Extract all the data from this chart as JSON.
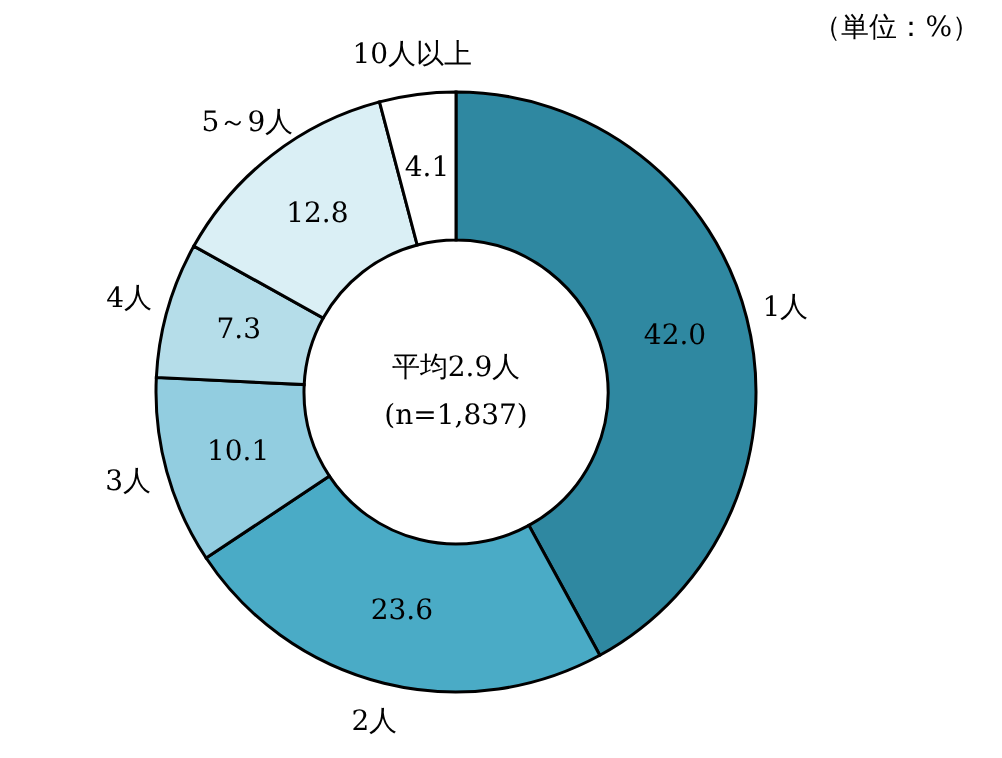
{
  "chart_data": {
    "type": "donut",
    "categories": [
      "1人",
      "2人",
      "3人",
      "4人",
      "5～9人",
      "10人以上"
    ],
    "values": [
      42.0,
      23.6,
      10.1,
      7.3,
      12.8,
      4.1
    ],
    "value_labels": [
      "42.0",
      "23.6",
      "10.1",
      "7.3",
      "12.8",
      "4.1"
    ],
    "colors": [
      "#2f88a1",
      "#4aabc6",
      "#92cde0",
      "#b5dde9",
      "#daeff5",
      "#ffffff"
    ],
    "annotations": [
      "（単位：%）",
      "平均2.9人",
      "(n=1,837)"
    ]
  }
}
